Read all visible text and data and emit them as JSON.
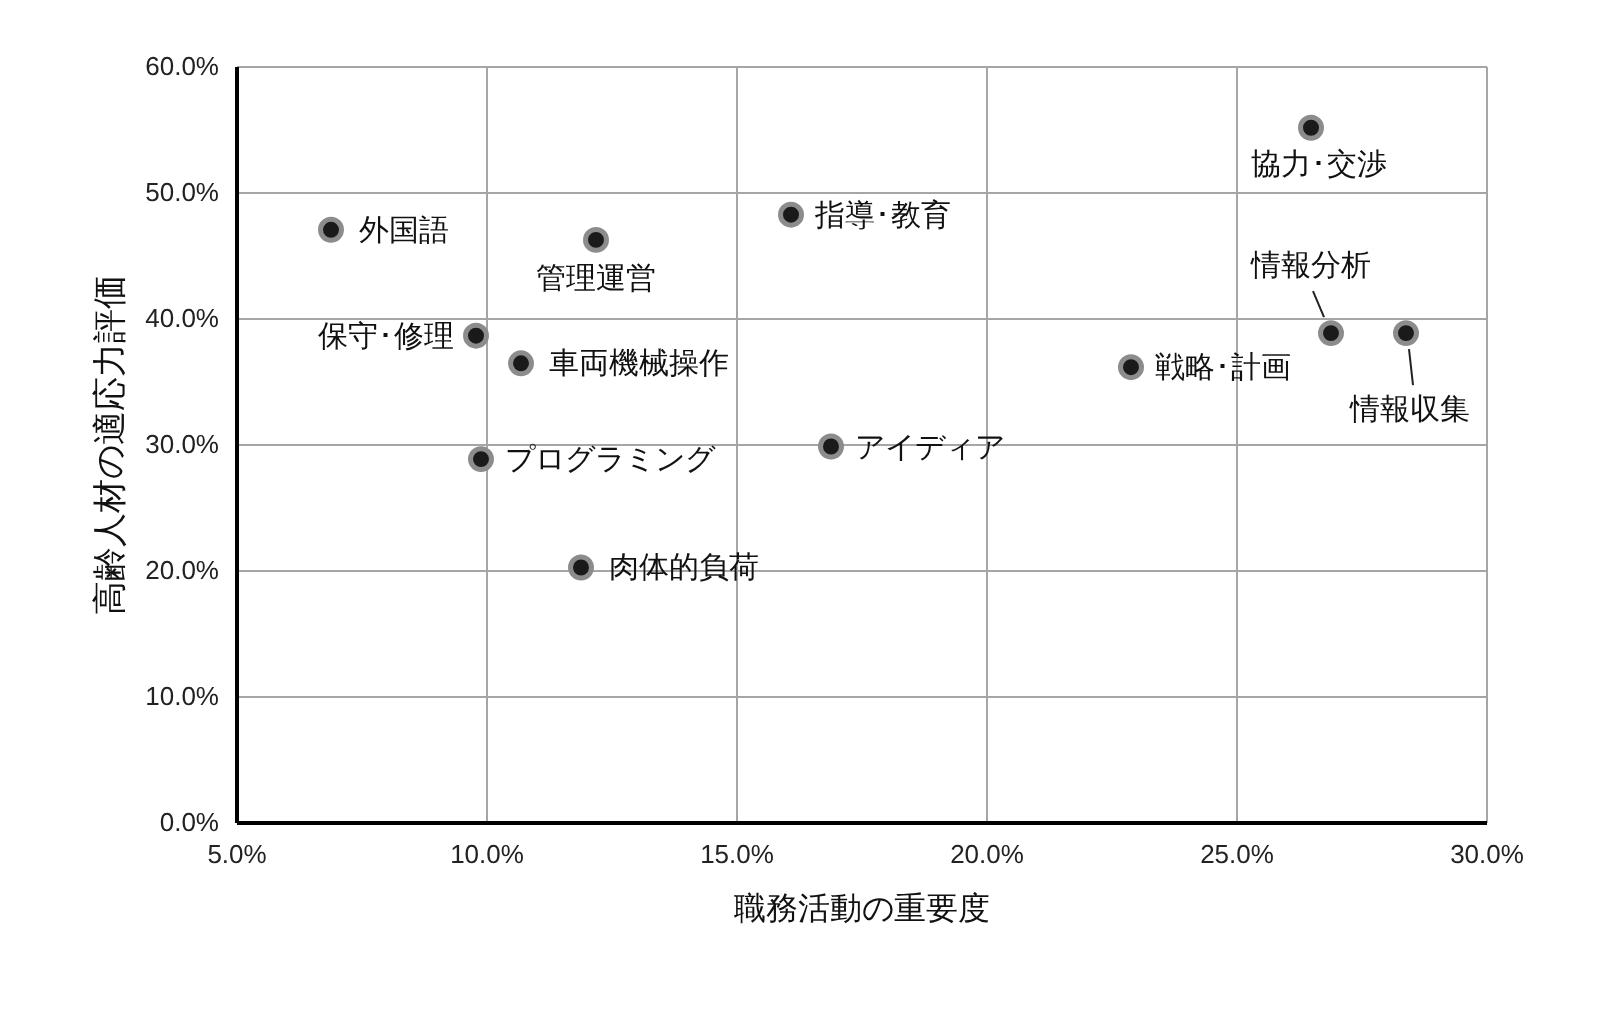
{
  "chart_data": {
    "type": "scatter",
    "xlabel": "職務活動の重要度",
    "ylabel": "高齢人材の適応力評価",
    "x": [
      6.9,
      12.2,
      16.1,
      9.8,
      10.7,
      22.9,
      9.9,
      16.9,
      11.9,
      26.5,
      26.9,
      28.4
    ],
    "values": [
      47.0,
      46.2,
      48.2,
      38.6,
      36.4,
      36.1,
      28.8,
      29.8,
      20.2,
      55.1,
      38.8,
      38.8
    ],
    "color": "#1a1a1a",
    "marker": "circle",
    "grid": true,
    "xlim": [
      5,
      30
    ],
    "xticks": [
      {
        "value": 5,
        "label": "5.0%"
      },
      {
        "value": 10,
        "label": "10.0%"
      },
      {
        "value": 15,
        "label": "15.0%"
      },
      {
        "value": 20,
        "label": "20.0%"
      },
      {
        "value": 25,
        "label": "25.0%"
      },
      {
        "value": 30,
        "label": "30.0%"
      }
    ],
    "ylim": [
      0,
      60
    ],
    "yticks": [
      {
        "value": 0,
        "label": "0.0%"
      },
      {
        "value": 10,
        "label": "10.0%"
      },
      {
        "value": 20,
        "label": "20.0%"
      },
      {
        "value": 30,
        "label": "30.0%"
      },
      {
        "value": 40,
        "label": "40.0%"
      },
      {
        "value": 50,
        "label": "50.0%"
      },
      {
        "value": 60,
        "label": "60.0%"
      }
    ],
    "annotations": [
      {
        "text": "外国語",
        "x": 6.9,
        "y": 47.0
      },
      {
        "text": "管理運営",
        "x": 12.2,
        "y": 46.2
      },
      {
        "text": "指導･教育",
        "x": 16.1,
        "y": 48.2
      },
      {
        "text": "保守･修理",
        "x": 9.8,
        "y": 38.6
      },
      {
        "text": "車両機械操作",
        "x": 10.7,
        "y": 36.4
      },
      {
        "text": "戦略･計画",
        "x": 22.9,
        "y": 36.1
      },
      {
        "text": "プログラミング",
        "x": 9.9,
        "y": 28.8
      },
      {
        "text": "アイディア",
        "x": 16.9,
        "y": 29.8
      },
      {
        "text": "肉体的負荷",
        "x": 11.9,
        "y": 20.2
      },
      {
        "text": "協力･交渉",
        "x": 26.5,
        "y": 55.1
      },
      {
        "text": "情報分析",
        "x": 26.9,
        "y": 38.8
      },
      {
        "text": "情報収集",
        "x": 28.4,
        "y": 38.8
      }
    ]
  }
}
